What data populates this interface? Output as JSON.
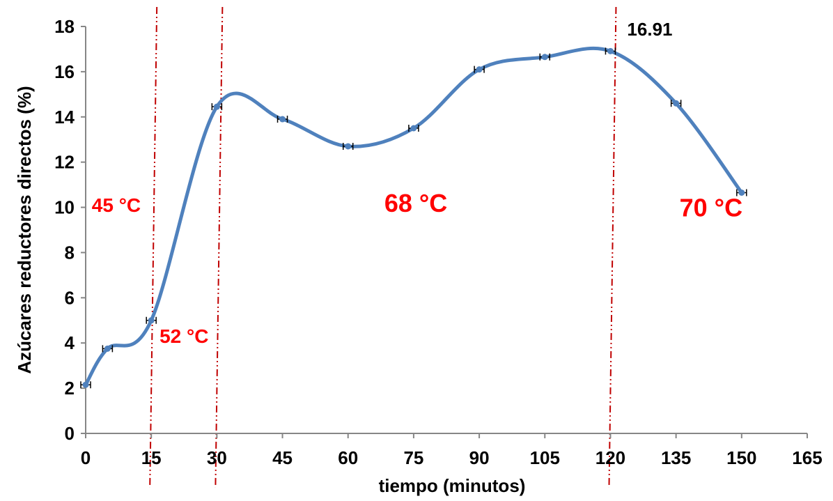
{
  "chart_data": {
    "type": "line",
    "smoothed": true,
    "title": "",
    "xlabel": "tiempo (minutos)",
    "ylabel": "Azúcares reductores directos (%)",
    "xlim": [
      0,
      165
    ],
    "ylim": [
      0,
      18
    ],
    "xticks": [
      0,
      15,
      30,
      45,
      60,
      75,
      90,
      105,
      120,
      135,
      150,
      165
    ],
    "yticks": [
      0,
      2,
      4,
      6,
      8,
      10,
      12,
      14,
      16,
      18
    ],
    "grid": false,
    "legend": "none",
    "series": [
      {
        "color": "#4f81bd",
        "x": [
          0,
          5,
          15,
          30,
          45,
          60,
          75,
          90,
          105,
          120,
          135,
          150
        ],
        "y": [
          2.15,
          3.75,
          5.0,
          14.45,
          13.9,
          12.7,
          13.5,
          16.1,
          16.65,
          16.91,
          14.6,
          10.65
        ],
        "error_bars": true
      }
    ],
    "vlines": {
      "color": "#c00000",
      "style": "dash-dot-dot",
      "x": [
        15,
        30,
        120
      ]
    },
    "annotations": [
      {
        "text": "45 °C",
        "x": 7,
        "y": 9.8,
        "color": "#ff0000"
      },
      {
        "text": "52 °C",
        "x": 22.5,
        "y": 4.0,
        "color": "#ff0000"
      },
      {
        "text": "68 °C",
        "x": 75.5,
        "y": 9.8,
        "color": "#ff0000"
      },
      {
        "text": "70 °C",
        "x": 143,
        "y": 9.6,
        "color": "#ff0000"
      },
      {
        "text": "16.91",
        "x": 129,
        "y": 17.6,
        "color": "#000000"
      }
    ]
  }
}
